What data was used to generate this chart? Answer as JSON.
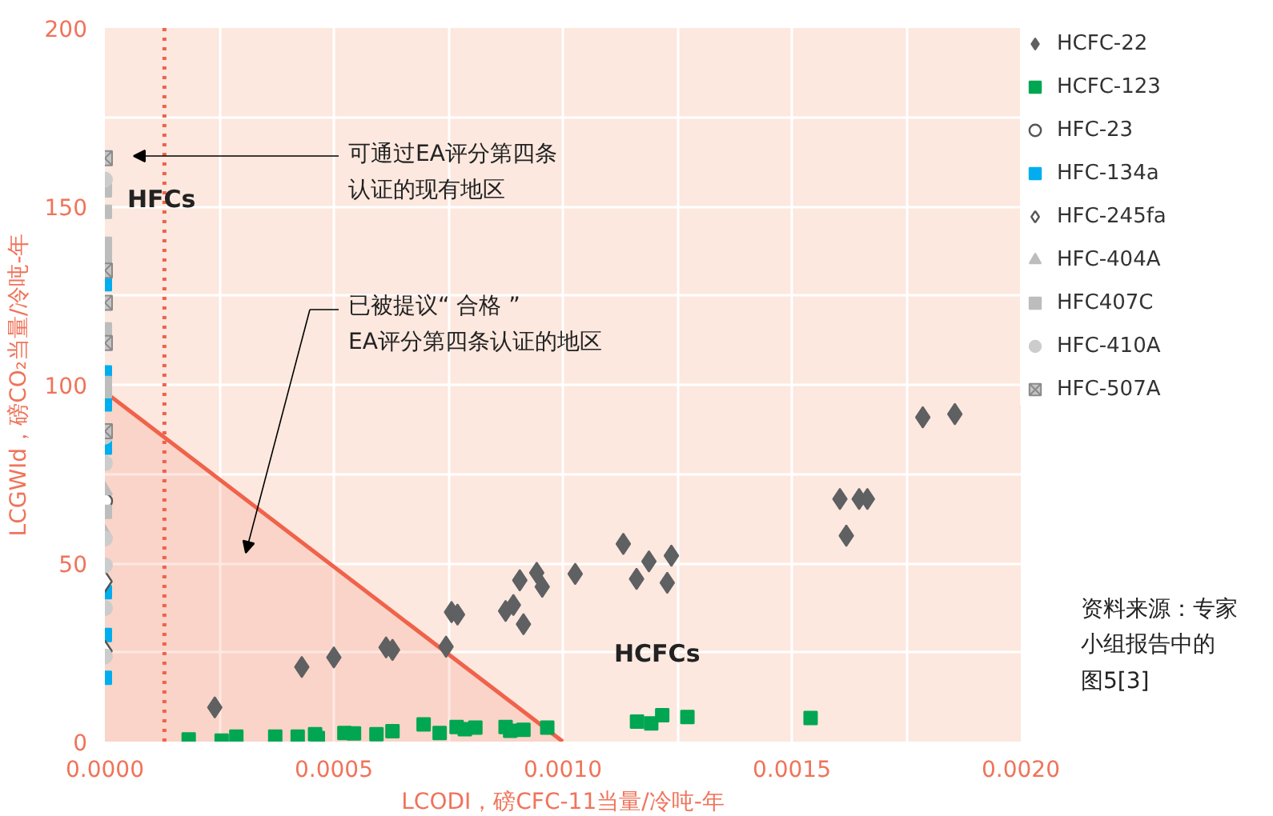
{
  "chart_data": {
    "type": "scatter",
    "xlabel": "LCODI，磅CFC-11当量/冷吨-年",
    "ylabel": "LCGWId，磅CO₂当量/冷吨-年",
    "xlim": [
      0,
      0.002
    ],
    "ylim": [
      0,
      200
    ],
    "xticks": [
      {
        "value": 0,
        "label": "0.0000"
      },
      {
        "value": 0.00025,
        "label": null
      },
      {
        "value": 0.0005,
        "label": "0.0005"
      },
      {
        "value": 0.00075,
        "label": null
      },
      {
        "value": 0.001,
        "label": "0.0010"
      },
      {
        "value": 0.00125,
        "label": null
      },
      {
        "value": 0.0015,
        "label": "0.0015"
      },
      {
        "value": 0.00175,
        "label": null
      },
      {
        "value": 0.002,
        "label": "0.0020"
      }
    ],
    "yticks": [
      0,
      {
        "value": 25,
        "label": null
      },
      50,
      {
        "value": 75,
        "label": null
      },
      100,
      {
        "value": 125,
        "label": null
      },
      150,
      {
        "value": 175,
        "label": null
      },
      200
    ],
    "grid": true,
    "legend": "right",
    "series": [
      {
        "type": "area",
        "color": "#f0624a",
        "x": [
          0,
          0.001
        ],
        "values": [
          98,
          0
        ]
      },
      {
        "name": "HCFC-22",
        "color": "#5f6062",
        "marker": "diamond",
        "x": [
          0.00024,
          0.00043,
          0.0005,
          0.000614,
          0.000628,
          0.000745,
          0.000757,
          0.00077,
          0.000875,
          0.000892,
          0.000914,
          0.000906,
          0.000943,
          0.000955,
          0.001027,
          0.001132,
          0.001161,
          0.001188,
          0.001237,
          0.001228,
          0.001605,
          0.001619,
          0.001647,
          0.001665,
          0.001786,
          0.001856
        ],
        "values": [
          9.6,
          20.9,
          23.6,
          26.4,
          25.7,
          26.6,
          36.3,
          35.6,
          36.6,
          38.3,
          32.9,
          45.2,
          47.3,
          43.4,
          47,
          55.4,
          45.6,
          50.5,
          52.1,
          44.5,
          68,
          57.7,
          68,
          68,
          90.9,
          91.8
        ]
      },
      {
        "name": "HCFC-123",
        "color": "#00a651",
        "marker": "square",
        "x": [
          0.000183,
          0.000255,
          0.000287,
          0.000372,
          0.000421,
          0.000459,
          0.000465,
          0.000523,
          0.000544,
          0.000593,
          0.000628,
          0.000696,
          0.000731,
          0.000768,
          0.000786,
          0.000809,
          0.000875,
          0.000885,
          0.000914,
          0.000966,
          0.001162,
          0.001193,
          0.001217,
          0.001272,
          0.001541
        ],
        "values": [
          0.6,
          0.3,
          1.4,
          1.4,
          1.4,
          2.1,
          1.0,
          2.4,
          2.3,
          2.1,
          2.9,
          4.8,
          2.4,
          4.1,
          3.5,
          3.9,
          4.1,
          3.0,
          3.3,
          3.9,
          5.6,
          5.1,
          7.4,
          6.9,
          6.6
        ]
      },
      {
        "name": "HFC-23",
        "color": "#ffffff",
        "marker": "circle",
        "x": [
          0
        ],
        "values": [
          67.4
        ]
      },
      {
        "name": "HFC-134a",
        "color": "#00aeef",
        "marker": "square",
        "x": [
          0,
          0,
          0,
          0,
          0,
          0,
          0
        ],
        "values": [
          128.2,
          103.5,
          94.5,
          82.4,
          41.9,
          29.9,
          17.9
        ]
      },
      {
        "name": "HFC-245fa",
        "color": "#ffffff",
        "marker": "diamond",
        "x": [
          0,
          0
        ],
        "values": [
          44.9,
          25.4
        ]
      },
      {
        "name": "HFC-404A",
        "color": "#bdbdbd",
        "marker": "triangle",
        "x": [
          0,
          0
        ],
        "values": [
          70.4,
          58.4
        ]
      },
      {
        "name": "HFC407C",
        "color": "#bdbdbd",
        "marker": "square",
        "x": [
          0,
          0,
          0,
          0,
          0,
          0,
          0,
          0
        ],
        "values": [
          154.5,
          148.5,
          139.5,
          135.7,
          115.5,
          100.5,
          98.2,
          64.4
        ]
      },
      {
        "name": "HFC-410A",
        "color": "#cccccc",
        "marker": "circle",
        "x": [
          0,
          0,
          0,
          0,
          0,
          0,
          0
        ],
        "values": [
          157.5,
          85.5,
          78,
          56.9,
          49.4,
          37.4,
          23.9
        ]
      },
      {
        "name": "HFC-507A",
        "color": "#c4c4c4",
        "marker": "cross",
        "x": [
          0,
          0,
          0,
          0,
          0
        ],
        "values": [
          163.5,
          132,
          123,
          111.7,
          87
        ]
      }
    ],
    "ref_lines": [
      {
        "axis": "x",
        "value": 0.00013,
        "color": "#f0624a",
        "line_style": "dotted"
      }
    ],
    "annotations": [
      "可通过EA评分第四条认证的现有地区",
      "已被提议“ 合格 ”EA评分第四条认证的地区",
      "HFCs",
      "HCFCs",
      "资料来源：专家小组报告中的图5[3]"
    ]
  }
}
